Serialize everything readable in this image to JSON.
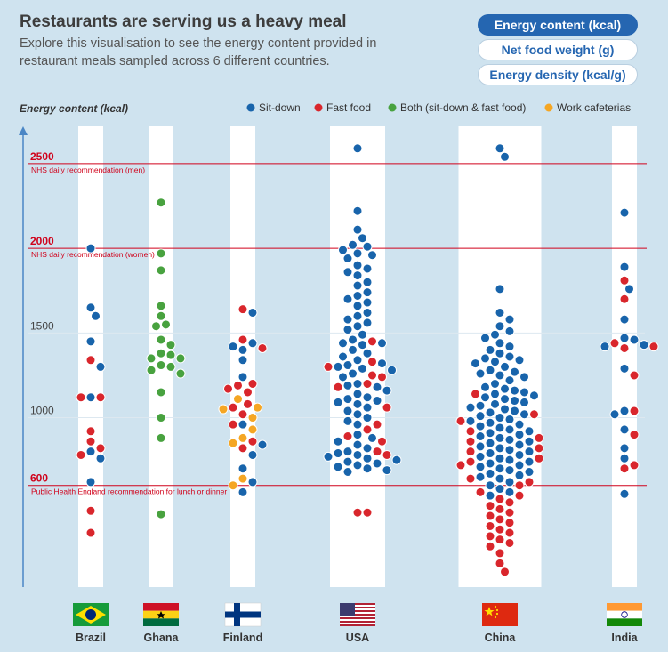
{
  "header": {
    "title": "Restaurants are serving us a heavy meal",
    "subtitle": "Explore this visualisation to see the energy content provided in restaurant meals sampled across 6 different countries."
  },
  "toggles": [
    {
      "label": "Energy content (kcal)",
      "active": true
    },
    {
      "label": "Net food weight (g)",
      "active": false
    },
    {
      "label": "Energy density (kcal/g)",
      "active": false
    }
  ],
  "chart_data": {
    "type": "scatter",
    "ylabel": "Energy content (kcal)",
    "ylim": [
      0,
      2720
    ],
    "y_ticks": [
      600,
      1000,
      1500,
      2000,
      2500
    ],
    "grid": true,
    "legend_position": "top-right",
    "series": [
      {
        "name": "Sit-down",
        "color": "#1864ab"
      },
      {
        "name": "Fast food",
        "color": "#d9262c"
      },
      {
        "name": "Both (sit-down & fast food)",
        "color": "#48a23f"
      },
      {
        "name": "Work cafeterias",
        "color": "#f5a623"
      }
    ],
    "reference_lines": [
      {
        "value": 2500,
        "label": "2500",
        "note": "NHS daily recommendation (men)"
      },
      {
        "value": 2000,
        "label": "2000",
        "note": "NHS daily recommendation (women)"
      },
      {
        "value": 600,
        "label": "600",
        "note": "Public Health England recommendation for lunch or dinner"
      }
    ],
    "categories": [
      "Brazil",
      "Ghana",
      "Finland",
      "USA",
      "China",
      "India"
    ],
    "countries": [
      {
        "name": "Brazil",
        "points": {
          "Sit-down": [
            1650,
            1600,
            1450,
            1300,
            1120,
            800,
            760,
            620,
            2000
          ],
          "Fast food": [
            1340,
            1120,
            1120,
            920,
            860,
            820,
            780,
            450,
            320
          ],
          "Both (sit-down & fast food)": [],
          "Work cafeterias": []
        }
      },
      {
        "name": "Ghana",
        "points": {
          "Sit-down": [],
          "Fast food": [],
          "Both (sit-down & fast food)": [
            2270,
            1970,
            1870,
            1660,
            1600,
            1550,
            1540,
            1460,
            1430,
            1380,
            1370,
            1350,
            1350,
            1310,
            1300,
            1280,
            1260,
            1150,
            1000,
            880,
            430
          ],
          "Work cafeterias": []
        }
      },
      {
        "name": "Finland",
        "points": {
          "Sit-down": [
            1620,
            1440,
            1420,
            1400,
            1340,
            1240,
            960,
            840,
            780,
            700,
            620,
            560
          ],
          "Fast food": [
            1640,
            1460,
            1410,
            1200,
            1190,
            1170,
            1150,
            1080,
            1060,
            1020,
            960,
            860,
            820
          ],
          "Both (sit-down & fast food)": [],
          "Work cafeterias": [
            1110,
            1060,
            1050,
            1000,
            930,
            880,
            850,
            640,
            600
          ]
        }
      },
      {
        "name": "USA",
        "points": {
          "Sit-down": [
            2590,
            2220,
            2110,
            2060,
            2020,
            2010,
            1990,
            1970,
            1960,
            1940,
            1900,
            1880,
            1860,
            1840,
            1800,
            1780,
            1740,
            1720,
            1700,
            1680,
            1660,
            1620,
            1600,
            1580,
            1560,
            1540,
            1520,
            1490,
            1460,
            1440,
            1440,
            1430,
            1400,
            1380,
            1360,
            1340,
            1320,
            1310,
            1300,
            1290,
            1280,
            1260,
            1240,
            1200,
            1190,
            1180,
            1160,
            1140,
            1120,
            1110,
            1100,
            1090,
            1080,
            1060,
            1040,
            1020,
            1000,
            980,
            960,
            900,
            880,
            860,
            840,
            820,
            800,
            790,
            780,
            770,
            760,
            750,
            740,
            730,
            720,
            710,
            700,
            690,
            680
          ],
          "Fast food": [
            1450,
            1330,
            1300,
            1250,
            1240,
            1200,
            1180,
            1060,
            960,
            930,
            890,
            860,
            800,
            780,
            440,
            440
          ],
          "Both (sit-down & fast food)": [],
          "Work cafeterias": []
        }
      },
      {
        "name": "China",
        "points": {
          "Sit-down": [
            2590,
            2540,
            1760,
            1620,
            1580,
            1540,
            1510,
            1490,
            1470,
            1440,
            1420,
            1400,
            1380,
            1360,
            1350,
            1340,
            1330,
            1320,
            1300,
            1280,
            1270,
            1260,
            1250,
            1240,
            1220,
            1200,
            1180,
            1170,
            1160,
            1150,
            1140,
            1130,
            1120,
            1110,
            1100,
            1090,
            1080,
            1070,
            1060,
            1050,
            1040,
            1030,
            1020,
            1010,
            1000,
            990,
            980,
            970,
            960,
            950,
            940,
            930,
            920,
            910,
            900,
            890,
            880,
            870,
            860,
            850,
            840,
            830,
            820,
            810,
            800,
            790,
            780,
            770,
            760,
            750,
            740,
            730,
            720,
            710,
            700,
            690,
            680,
            670,
            660,
            650,
            640,
            620,
            600,
            580,
            560,
            540
          ],
          "Fast food": [
            1140,
            1020,
            980,
            920,
            880,
            860,
            820,
            800,
            760,
            740,
            720,
            640,
            620,
            600,
            560,
            540,
            520,
            500,
            480,
            460,
            440,
            420,
            400,
            380,
            360,
            340,
            320,
            300,
            280,
            260,
            240,
            200,
            140,
            90
          ],
          "Both (sit-down & fast food)": [],
          "Work cafeterias": []
        }
      },
      {
        "name": "India",
        "points": {
          "Sit-down": [
            2210,
            1890,
            1760,
            1580,
            1470,
            1460,
            1430,
            1420,
            1290,
            1040,
            1020,
            930,
            820,
            760,
            550
          ],
          "Fast food": [
            1810,
            1700,
            1440,
            1420,
            1410,
            1250,
            1040,
            900,
            720,
            700
          ]
        }
      }
    ]
  }
}
